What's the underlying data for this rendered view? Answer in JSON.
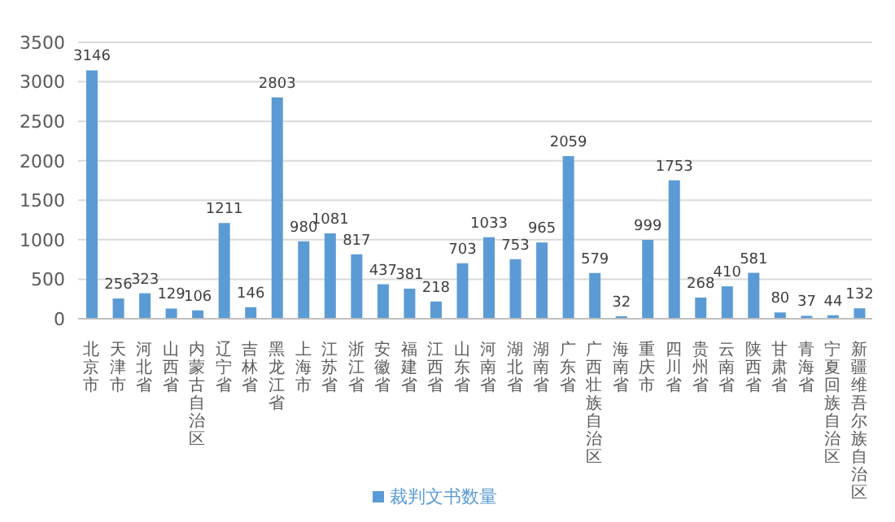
{
  "chart_data": {
    "type": "bar",
    "categories": [
      "北京市",
      "天津市",
      "河北省",
      "山西省",
      "内蒙古自治区",
      "辽宁省",
      "吉林省",
      "黑龙江省",
      "上海市",
      "江苏省",
      "浙江省",
      "安徽省",
      "福建省",
      "江西省",
      "山东省",
      "河南省",
      "湖北省",
      "湖南省",
      "广东省",
      "广西壮族自治区",
      "海南省",
      "重庆市",
      "四川省",
      "贵州省",
      "云南省",
      "陕西省",
      "甘肃省",
      "青海省",
      "宁夏回族自治区",
      "新疆维吾尔族自治区"
    ],
    "series": [
      {
        "name": "裁判文书数量",
        "color": "#5b9bd5",
        "values": [
          3146,
          256,
          323,
          129,
          106,
          1211,
          146,
          2803,
          980,
          1081,
          817,
          437,
          381,
          218,
          703,
          1033,
          753,
          965,
          2059,
          579,
          32,
          999,
          1753,
          268,
          410,
          581,
          80,
          37,
          44,
          132
        ]
      }
    ],
    "ylim": [
      0,
      3500
    ],
    "yticks": [
      0,
      500,
      1000,
      1500,
      2000,
      2500,
      3000,
      3500
    ],
    "grid": "y",
    "legend": "bottom",
    "data_labels": true
  }
}
